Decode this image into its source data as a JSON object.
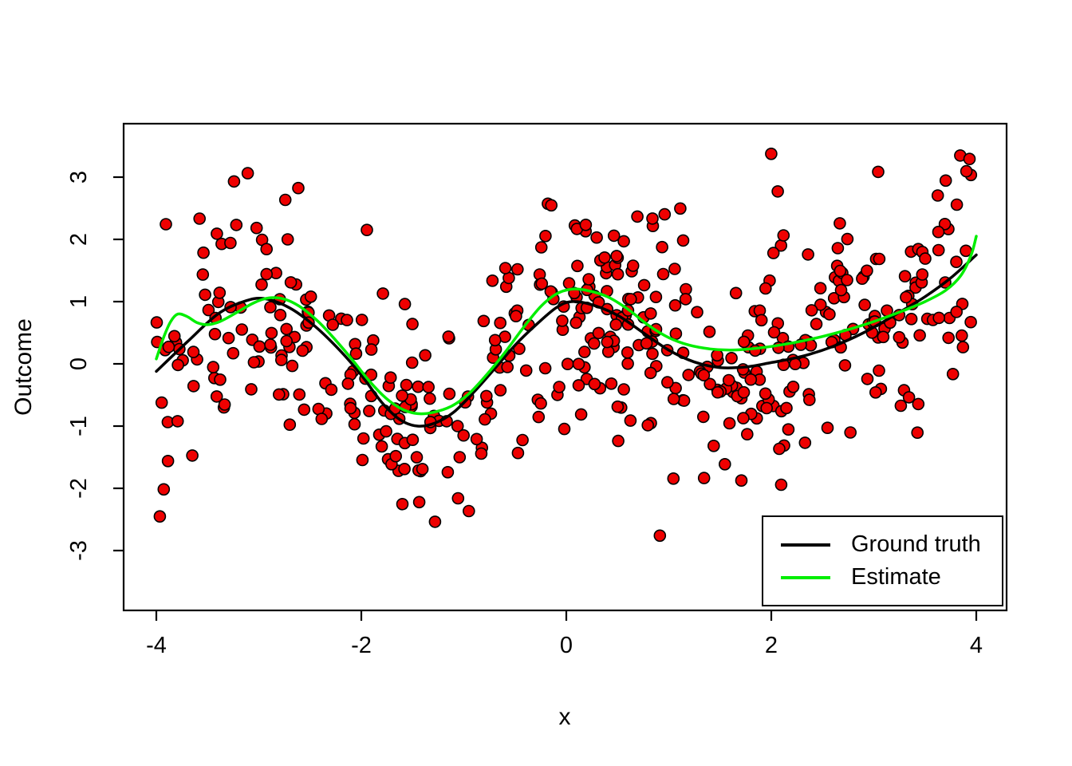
{
  "figure": {
    "background": "#FFFFFF"
  },
  "chart_data": {
    "type": "scatter",
    "title": "",
    "xlabel": "x",
    "ylabel": "Outcome",
    "xlim": [
      -4.32,
      4.32
    ],
    "ylim": [
      -3.96,
      3.86
    ],
    "x_ticks": [
      -4,
      -2,
      0,
      2,
      4
    ],
    "y_ticks": [
      -3,
      -2,
      -1,
      0,
      1,
      2,
      3
    ],
    "grid": false,
    "point_style": {
      "fill": "#EE0000",
      "stroke": "#000000",
      "radius": 7,
      "stroke_width": 1.6
    },
    "scatter_generator": {
      "n": 500,
      "seed": 7,
      "x_range": [
        -4,
        4
      ],
      "noise_sd": 0.95,
      "mean_series": "Ground truth"
    },
    "series": [
      {
        "name": "Ground truth",
        "type": "line",
        "color": "#000000",
        "width": 3.5,
        "points": [
          [
            -4.0,
            -0.12
          ],
          [
            -3.7,
            0.35
          ],
          [
            -3.4,
            0.8
          ],
          [
            -3.15,
            1.0
          ],
          [
            -2.95,
            1.05
          ],
          [
            -2.7,
            0.9
          ],
          [
            -2.45,
            0.6
          ],
          [
            -2.2,
            0.2
          ],
          [
            -2.0,
            -0.18
          ],
          [
            -1.8,
            -0.62
          ],
          [
            -1.62,
            -0.9
          ],
          [
            -1.45,
            -1.0
          ],
          [
            -1.28,
            -0.95
          ],
          [
            -1.1,
            -0.78
          ],
          [
            -0.9,
            -0.45
          ],
          [
            -0.7,
            -0.08
          ],
          [
            -0.5,
            0.3
          ],
          [
            -0.3,
            0.62
          ],
          [
            -0.1,
            0.9
          ],
          [
            0.05,
            1.0
          ],
          [
            0.25,
            0.95
          ],
          [
            0.5,
            0.78
          ],
          [
            0.75,
            0.5
          ],
          [
            1.0,
            0.22
          ],
          [
            1.25,
            0.03
          ],
          [
            1.5,
            -0.06
          ],
          [
            1.75,
            -0.05
          ],
          [
            2.0,
            0.02
          ],
          [
            2.3,
            0.12
          ],
          [
            2.6,
            0.28
          ],
          [
            2.9,
            0.5
          ],
          [
            3.2,
            0.78
          ],
          [
            3.5,
            1.08
          ],
          [
            3.75,
            1.38
          ],
          [
            4.0,
            1.75
          ]
        ]
      },
      {
        "name": "Estimate",
        "type": "line",
        "color": "#00EE00",
        "width": 3.5,
        "points": [
          [
            -4.0,
            0.08
          ],
          [
            -3.93,
            0.42
          ],
          [
            -3.86,
            0.68
          ],
          [
            -3.79,
            0.8
          ],
          [
            -3.7,
            0.76
          ],
          [
            -3.6,
            0.66
          ],
          [
            -3.5,
            0.63
          ],
          [
            -3.38,
            0.68
          ],
          [
            -3.22,
            0.82
          ],
          [
            -3.05,
            0.98
          ],
          [
            -2.9,
            1.06
          ],
          [
            -2.75,
            1.04
          ],
          [
            -2.6,
            0.92
          ],
          [
            -2.42,
            0.68
          ],
          [
            -2.25,
            0.38
          ],
          [
            -2.08,
            0.05
          ],
          [
            -1.92,
            -0.28
          ],
          [
            -1.76,
            -0.55
          ],
          [
            -1.6,
            -0.73
          ],
          [
            -1.45,
            -0.8
          ],
          [
            -1.3,
            -0.78
          ],
          [
            -1.12,
            -0.68
          ],
          [
            -0.95,
            -0.48
          ],
          [
            -0.78,
            -0.18
          ],
          [
            -0.6,
            0.18
          ],
          [
            -0.42,
            0.58
          ],
          [
            -0.25,
            0.92
          ],
          [
            -0.1,
            1.12
          ],
          [
            0.05,
            1.2
          ],
          [
            0.2,
            1.18
          ],
          [
            0.4,
            1.08
          ],
          [
            0.6,
            0.88
          ],
          [
            0.8,
            0.62
          ],
          [
            1.0,
            0.42
          ],
          [
            1.2,
            0.3
          ],
          [
            1.4,
            0.24
          ],
          [
            1.6,
            0.22
          ],
          [
            1.8,
            0.24
          ],
          [
            2.0,
            0.28
          ],
          [
            2.25,
            0.35
          ],
          [
            2.5,
            0.44
          ],
          [
            2.75,
            0.55
          ],
          [
            3.0,
            0.68
          ],
          [
            3.25,
            0.83
          ],
          [
            3.5,
            1.0
          ],
          [
            3.7,
            1.18
          ],
          [
            3.85,
            1.42
          ],
          [
            3.95,
            1.75
          ],
          [
            4.0,
            2.05
          ]
        ]
      }
    ],
    "legend": {
      "position": "bottom-right",
      "entries": [
        {
          "label": "Ground truth",
          "color": "#000000"
        },
        {
          "label": "Estimate",
          "color": "#00EE00"
        }
      ]
    }
  }
}
